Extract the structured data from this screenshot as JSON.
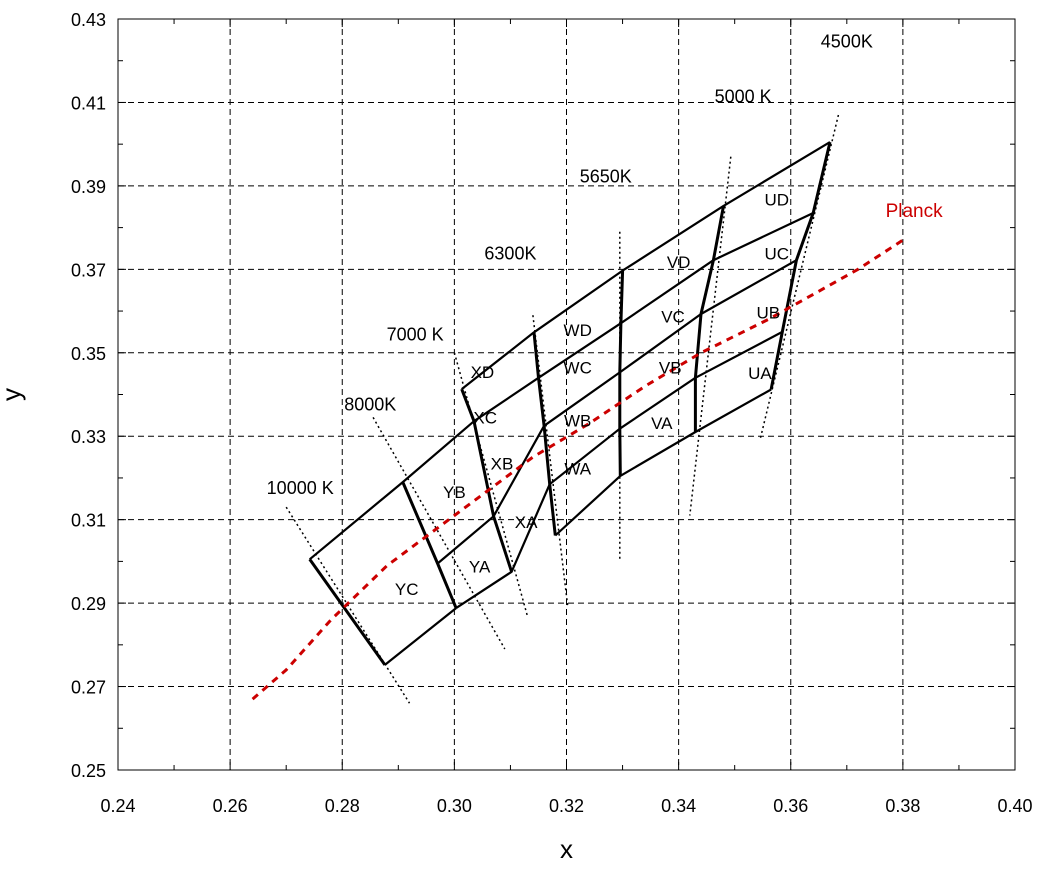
{
  "chart_data": {
    "type": "line",
    "xlabel": "x",
    "ylabel": "y",
    "xlim": [
      0.24,
      0.4
    ],
    "ylim": [
      0.25,
      0.43
    ],
    "x_ticks": [
      "0.24",
      "0.26",
      "0.28",
      "0.30",
      "0.32",
      "0.34",
      "0.36",
      "0.38",
      "0.40"
    ],
    "y_ticks": [
      "0.25",
      "0.27",
      "0.29",
      "0.31",
      "0.33",
      "0.35",
      "0.37",
      "0.39",
      "0.41",
      "0.43"
    ],
    "grid": true,
    "colors": {
      "planck": "#cc0000",
      "boxes": "#000000"
    },
    "bin_boundaries": [
      {
        "cct": "10000 K",
        "points": [
          [
            0.2742,
            0.3005
          ],
          [
            0.2876,
            0.2752
          ]
        ]
      },
      {
        "cct": "8000K",
        "points": [
          [
            0.2908,
            0.319
          ],
          [
            0.297,
            0.2995
          ],
          [
            0.3003,
            0.2888
          ]
        ]
      },
      {
        "cct": "7000 K",
        "points": [
          [
            0.3013,
            0.3413
          ],
          [
            0.3035,
            0.3336
          ],
          [
            0.307,
            0.3108
          ],
          [
            0.3102,
            0.2975
          ]
        ]
      },
      {
        "cct": "6300K",
        "points": [
          [
            0.3142,
            0.3549
          ],
          [
            0.315,
            0.344
          ],
          [
            0.316,
            0.3325
          ],
          [
            0.317,
            0.3185
          ],
          [
            0.318,
            0.3062
          ]
        ]
      },
      {
        "cct": "5650K",
        "points": [
          [
            0.33,
            0.3697
          ],
          [
            0.3297,
            0.3571
          ],
          [
            0.3295,
            0.3453
          ],
          [
            0.3295,
            0.3318
          ],
          [
            0.3296,
            0.3205
          ]
        ]
      },
      {
        "cct": "5000 K",
        "points": [
          [
            0.348,
            0.3852
          ],
          [
            0.3462,
            0.3722
          ],
          [
            0.344,
            0.3593
          ],
          [
            0.343,
            0.344
          ],
          [
            0.343,
            0.331
          ]
        ]
      },
      {
        "cct": "4500K",
        "points": [
          [
            0.367,
            0.4005
          ],
          [
            0.364,
            0.3835
          ],
          [
            0.361,
            0.3722
          ],
          [
            0.3585,
            0.355
          ],
          [
            0.3565,
            0.3412
          ]
        ]
      }
    ],
    "bin_rows": [
      [
        [
          0.2742,
          0.3005
        ],
        [
          0.2908,
          0.319
        ],
        [
          0.3035,
          0.3336
        ],
        [
          0.315,
          0.344
        ],
        [
          0.3297,
          0.3571
        ],
        [
          0.3462,
          0.3722
        ],
        [
          0.364,
          0.3835
        ]
      ],
      [
        [
          0.297,
          0.2995
        ],
        [
          0.307,
          0.3108
        ],
        [
          0.316,
          0.3325
        ],
        [
          0.3295,
          0.3453
        ],
        [
          0.344,
          0.3593
        ],
        [
          0.361,
          0.3722
        ]
      ],
      [
        [
          0.3003,
          0.2888
        ],
        [
          0.3102,
          0.2975
        ],
        [
          0.317,
          0.3185
        ],
        [
          0.3295,
          0.3318
        ],
        [
          0.343,
          0.344
        ],
        [
          0.3585,
          0.355
        ]
      ],
      [
        [
          0.2876,
          0.2752
        ],
        [
          0.3003,
          0.2888
        ]
      ],
      [
        [
          0.318,
          0.3062
        ],
        [
          0.3296,
          0.3205
        ],
        [
          0.343,
          0.331
        ],
        [
          0.3565,
          0.3412
        ]
      ]
    ],
    "bin_top_edges": [
      [
        [
          0.3013,
          0.3413
        ],
        [
          0.3142,
          0.3549
        ],
        [
          0.33,
          0.3697
        ],
        [
          0.348,
          0.3852
        ],
        [
          0.367,
          0.4005
        ]
      ]
    ],
    "extension_lines": [
      {
        "points": [
          [
            0.27,
            0.313
          ],
          [
            0.292,
            0.266
          ]
        ]
      },
      {
        "points": [
          [
            0.2855,
            0.3345
          ],
          [
            0.309,
            0.279
          ]
        ]
      },
      {
        "points": [
          [
            0.3,
            0.35
          ],
          [
            0.313,
            0.287
          ]
        ]
      },
      {
        "points": [
          [
            0.314,
            0.359
          ],
          [
            0.3202,
            0.2895
          ]
        ]
      },
      {
        "points": [
          [
            0.3295,
            0.379
          ],
          [
            0.3295,
            0.3005
          ]
        ]
      },
      {
        "points": [
          [
            0.3493,
            0.397
          ],
          [
            0.342,
            0.311
          ]
        ]
      },
      {
        "points": [
          [
            0.3685,
            0.407
          ],
          [
            0.3545,
            0.329
          ]
        ]
      }
    ],
    "planck": {
      "name": "Planck",
      "points": [
        [
          0.264,
          0.267
        ],
        [
          0.27,
          0.274
        ],
        [
          0.278,
          0.286
        ],
        [
          0.288,
          0.299
        ],
        [
          0.298,
          0.309
        ],
        [
          0.306,
          0.317
        ],
        [
          0.314,
          0.325
        ],
        [
          0.324,
          0.333
        ],
        [
          0.334,
          0.342
        ],
        [
          0.344,
          0.35
        ],
        [
          0.356,
          0.358
        ],
        [
          0.364,
          0.364
        ],
        [
          0.372,
          0.37
        ],
        [
          0.38,
          0.377
        ]
      ]
    },
    "cct_labels": [
      {
        "text": "10000 K",
        "x": 0.2725,
        "y": 0.3162
      },
      {
        "text": "8000K",
        "x": 0.285,
        "y": 0.3362
      },
      {
        "text": "7000 K",
        "x": 0.293,
        "y": 0.353
      },
      {
        "text": "6300K",
        "x": 0.31,
        "y": 0.3724
      },
      {
        "text": "5650K",
        "x": 0.327,
        "y": 0.3908
      },
      {
        "text": "5000 K",
        "x": 0.3515,
        "y": 0.41
      },
      {
        "text": "4500K",
        "x": 0.37,
        "y": 0.4232
      }
    ],
    "bin_labels": [
      {
        "text": "YC",
        "x": 0.2915,
        "y": 0.292
      },
      {
        "text": "YB",
        "x": 0.3,
        "y": 0.3152
      },
      {
        "text": "YA",
        "x": 0.3045,
        "y": 0.2973
      },
      {
        "text": "XD",
        "x": 0.305,
        "y": 0.3439
      },
      {
        "text": "XC",
        "x": 0.3055,
        "y": 0.333
      },
      {
        "text": "XB",
        "x": 0.3085,
        "y": 0.322
      },
      {
        "text": "XA",
        "x": 0.3128,
        "y": 0.308
      },
      {
        "text": "WD",
        "x": 0.322,
        "y": 0.354
      },
      {
        "text": "WC",
        "x": 0.322,
        "y": 0.345
      },
      {
        "text": "WB",
        "x": 0.322,
        "y": 0.3323
      },
      {
        "text": "WA",
        "x": 0.322,
        "y": 0.3208
      },
      {
        "text": "VD",
        "x": 0.34,
        "y": 0.3703
      },
      {
        "text": "VC",
        "x": 0.339,
        "y": 0.3573
      },
      {
        "text": "VB",
        "x": 0.3385,
        "y": 0.345
      },
      {
        "text": "VA",
        "x": 0.337,
        "y": 0.3317
      },
      {
        "text": "UD",
        "x": 0.3575,
        "y": 0.3853
      },
      {
        "text": "UC",
        "x": 0.3575,
        "y": 0.3723
      },
      {
        "text": "UB",
        "x": 0.356,
        "y": 0.3582
      },
      {
        "text": "UA",
        "x": 0.3545,
        "y": 0.3437
      },
      {
        "text": "Planck",
        "x": 0.382,
        "y": 0.3825,
        "color": "#cc0000"
      }
    ]
  }
}
